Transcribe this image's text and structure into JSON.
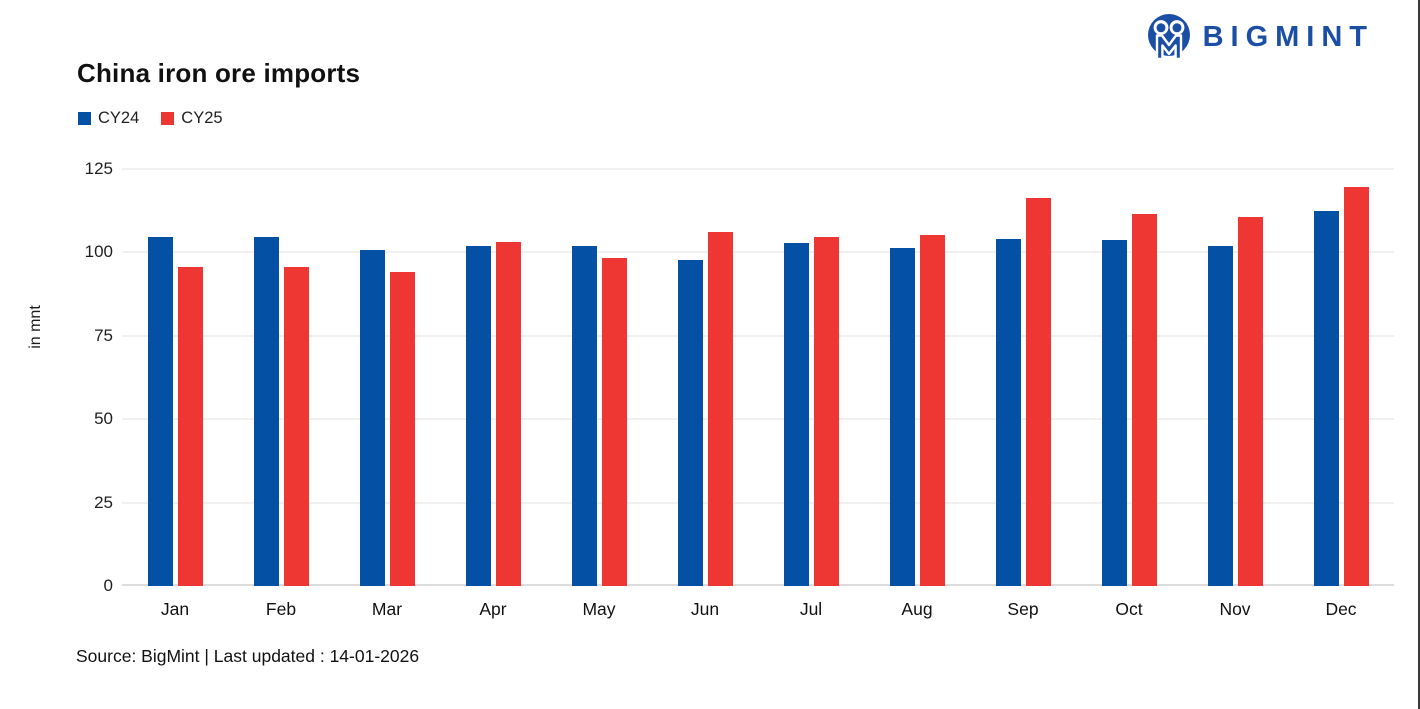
{
  "brand": {
    "logo_text": "BIGMINT",
    "logo_color": "#1b4fa6"
  },
  "chart_data": {
    "type": "bar",
    "title": "China iron ore imports",
    "categories": [
      "Jan",
      "Feb",
      "Mar",
      "Apr",
      "May",
      "Jun",
      "Jul",
      "Aug",
      "Sep",
      "Oct",
      "Nov",
      "Dec"
    ],
    "series": [
      {
        "name": "CY24",
        "color": "#0450a4",
        "values": [
          104.7,
          104.7,
          100.7,
          101.8,
          102.0,
          97.6,
          102.9,
          101.4,
          104.1,
          103.8,
          101.9,
          112.5
        ]
      },
      {
        "name": "CY25",
        "color": "#ee3733",
        "values": [
          95.7,
          95.7,
          94.0,
          103.2,
          98.2,
          106.0,
          104.6,
          105.2,
          116.3,
          111.4,
          110.6,
          119.7
        ]
      }
    ],
    "xlabel": "",
    "ylabel": "in mnt",
    "yticks": [
      0,
      25,
      50,
      75,
      100,
      125
    ],
    "ylim": [
      0,
      125
    ],
    "grid": true,
    "gridline_color": "#f0f0f0",
    "axis_line_color": "#dcdcdc",
    "legend_position": "top-left"
  },
  "footer": {
    "source_text": "Source: BigMint | Last updated : 14-01-2026"
  }
}
